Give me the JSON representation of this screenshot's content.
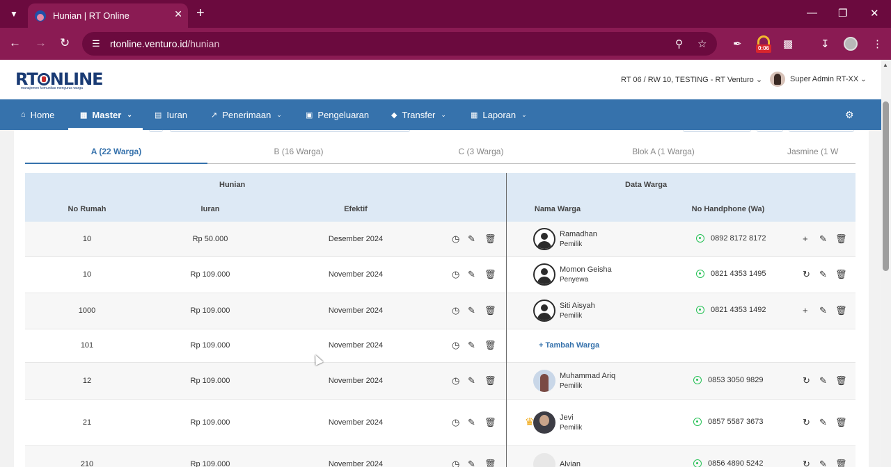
{
  "browser": {
    "tab_title": "Hunian | RT Online",
    "url_host": "rtonline.venturo.id",
    "url_path": "/hunian",
    "ext_timer": "0:06",
    "icons": [
      "tab-search-icon",
      "close-icon",
      "plus-icon",
      "minimize-icon",
      "restore-icon",
      "back-icon",
      "forward-icon",
      "reload-icon",
      "zoom-icon",
      "star-icon",
      "feather-icon",
      "puzzle-icon",
      "download-icon",
      "kebab-icon"
    ]
  },
  "header": {
    "logo_main": "RT",
    "logo_rest": "NLINE",
    "logo_tagline": "manajemen komunitas mengurus warga",
    "rt_select": "RT 06 / RW 10, TESTING - RT Venturo",
    "user_name": "Super Admin RT-XX"
  },
  "nav": {
    "items": [
      {
        "label": "Home",
        "icon": "home-icon"
      },
      {
        "label": "Master",
        "icon": "file-icon"
      },
      {
        "label": "Iuran",
        "icon": "card-icon"
      },
      {
        "label": "Penerimaan",
        "icon": "chart-icon"
      },
      {
        "label": "Pengeluaran",
        "icon": "image-icon"
      },
      {
        "label": "Transfer",
        "icon": "tag-icon"
      },
      {
        "label": "Laporan",
        "icon": "file-icon"
      }
    ],
    "active": "Master"
  },
  "blok_tabs": [
    {
      "label": "A (22 Warga)",
      "active": true
    },
    {
      "label": "B (16 Warga)"
    },
    {
      "label": "C (3 Warga)"
    },
    {
      "label": "Blok A (1 Warga)"
    },
    {
      "label": "Jasmine (1 W"
    }
  ],
  "table": {
    "group_hunian": "Hunian",
    "group_warga": "Data Warga",
    "col_no_rumah": "No Rumah",
    "col_iuran": "Iuran",
    "col_efektif": "Efektif",
    "col_nama": "Nama Warga",
    "col_hp": "No Handphone (Wa)",
    "add_warga": "+ Tambah Warga",
    "rows": [
      {
        "no": "10",
        "iuran": "Rp 50.000",
        "efektif": "Desember 2024",
        "nama": "Ramadhan",
        "role": "Pemilik",
        "hp": "0892 8172 8172"
      },
      {
        "no": "10",
        "iuran": "Rp 109.000",
        "efektif": "November 2024",
        "nama": "Momon Geisha",
        "role": "Penyewa",
        "hp": "0821 4353 1495"
      },
      {
        "no": "1000",
        "iuran": "Rp 109.000",
        "efektif": "November 2024",
        "nama": "Siti Aisyah",
        "role": "Pemilik",
        "hp": "0821 4353 1492"
      },
      {
        "no": "101",
        "iuran": "Rp 109.000",
        "efektif": "November 2024"
      },
      {
        "no": "12",
        "iuran": "Rp 109.000",
        "efektif": "November 2024",
        "nama": "Muhammad Ariq",
        "role": "Pemilik",
        "hp": "0853 3050 9829"
      },
      {
        "no": "21",
        "iuran": "Rp 109.000",
        "efektif": "November 2024",
        "nama": "Jevi",
        "role": "Pemilik",
        "hp": "0857 5587 3673"
      },
      {
        "no": "210",
        "iuran": "Rp 109.000",
        "efektif": "November 2024",
        "nama": "Alvian",
        "hp": "0856 4890 5242"
      }
    ]
  }
}
